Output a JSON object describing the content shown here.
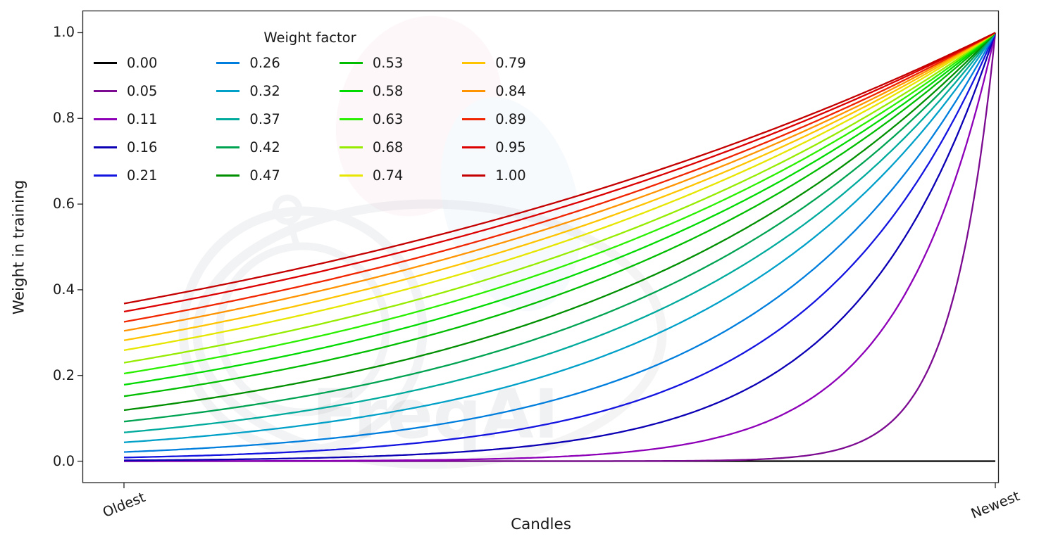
{
  "figure": {
    "watermark_text": "FreqAI",
    "background_color": "#ffffff"
  },
  "chart_data": {
    "type": "line",
    "title": "",
    "xlabel": "Candles",
    "ylabel": "Weight in training",
    "x_ticks": [
      {
        "label": "Oldest",
        "x": 0
      },
      {
        "label": "Newest",
        "x": 1
      }
    ],
    "y_ticks": [
      {
        "label": "0.0",
        "value": 0.0
      },
      {
        "label": "0.2",
        "value": 0.2
      },
      {
        "label": "0.4",
        "value": 0.4
      },
      {
        "label": "0.6",
        "value": 0.6
      },
      {
        "label": "0.8",
        "value": 0.8
      },
      {
        "label": "1.0",
        "value": 1.0
      }
    ],
    "ylim": [
      -0.05,
      1.05
    ],
    "x_range": "normalized candle age, Oldest (0) to Newest (1)",
    "grid": false,
    "curve_formula": "weight(x) = exp(-(1 - x) / factor) for factor > 0; factor = 0 gives constant 0",
    "legend": {
      "title": "Weight factor",
      "columns": 4,
      "rows": 5,
      "order": "column-major",
      "position": "upper-left-inside",
      "frame": false
    },
    "series": [
      {
        "label": "0.00",
        "factor": 0.0,
        "color": "#000000",
        "weight_at_oldest": 0.0,
        "weight_at_newest": 0.0
      },
      {
        "label": "0.05",
        "factor": 0.05,
        "color": "#7c0b91",
        "weight_at_oldest": 0.0,
        "weight_at_newest": 1.0
      },
      {
        "label": "0.11",
        "factor": 0.11,
        "color": "#8d00b8",
        "weight_at_oldest": 0.0001,
        "weight_at_newest": 1.0
      },
      {
        "label": "0.16",
        "factor": 0.16,
        "color": "#0c00b4",
        "weight_at_oldest": 0.0019,
        "weight_at_newest": 1.0
      },
      {
        "label": "0.21",
        "factor": 0.21,
        "color": "#1414e0",
        "weight_at_oldest": 0.0086,
        "weight_at_newest": 1.0
      },
      {
        "label": "0.26",
        "factor": 0.26,
        "color": "#007edd",
        "weight_at_oldest": 0.0213,
        "weight_at_newest": 1.0
      },
      {
        "label": "0.32",
        "factor": 0.32,
        "color": "#00a0c8",
        "weight_at_oldest": 0.0439,
        "weight_at_newest": 1.0
      },
      {
        "label": "0.37",
        "factor": 0.37,
        "color": "#00aa9c",
        "weight_at_oldest": 0.067,
        "weight_at_newest": 1.0
      },
      {
        "label": "0.42",
        "factor": 0.42,
        "color": "#00a352",
        "weight_at_oldest": 0.0924,
        "weight_at_newest": 1.0
      },
      {
        "label": "0.47",
        "factor": 0.47,
        "color": "#008f00",
        "weight_at_oldest": 0.119,
        "weight_at_newest": 1.0
      },
      {
        "label": "0.53",
        "factor": 0.53,
        "color": "#00bd00",
        "weight_at_oldest": 0.1516,
        "weight_at_newest": 1.0
      },
      {
        "label": "0.58",
        "factor": 0.58,
        "color": "#00da00",
        "weight_at_oldest": 0.1784,
        "weight_at_newest": 1.0
      },
      {
        "label": "0.63",
        "factor": 0.63,
        "color": "#2af000",
        "weight_at_oldest": 0.2045,
        "weight_at_newest": 1.0
      },
      {
        "label": "0.68",
        "factor": 0.68,
        "color": "#96ec00",
        "weight_at_oldest": 0.2298,
        "weight_at_newest": 1.0
      },
      {
        "label": "0.74",
        "factor": 0.74,
        "color": "#e6e600",
        "weight_at_oldest": 0.2589,
        "weight_at_newest": 1.0
      },
      {
        "label": "0.79",
        "factor": 0.79,
        "color": "#ffc400",
        "weight_at_oldest": 0.282,
        "weight_at_newest": 1.0
      },
      {
        "label": "0.84",
        "factor": 0.84,
        "color": "#ff9400",
        "weight_at_oldest": 0.3041,
        "weight_at_newest": 1.0
      },
      {
        "label": "0.89",
        "factor": 0.89,
        "color": "#f02500",
        "weight_at_oldest": 0.3251,
        "weight_at_newest": 1.0
      },
      {
        "label": "0.95",
        "factor": 0.95,
        "color": "#dc0000",
        "weight_at_oldest": 0.3489,
        "weight_at_newest": 1.0
      },
      {
        "label": "1.00",
        "factor": 1.0,
        "color": "#c40000",
        "weight_at_oldest": 0.3679,
        "weight_at_newest": 1.0
      }
    ]
  }
}
